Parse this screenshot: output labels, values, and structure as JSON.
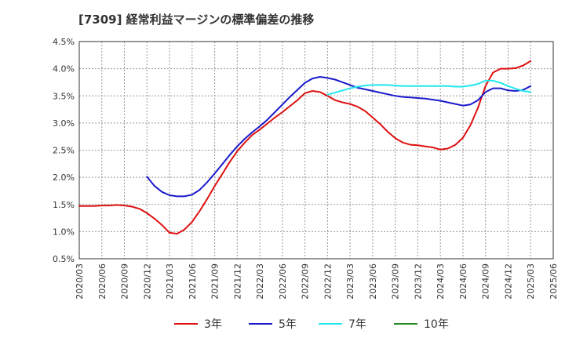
{
  "chart_data": {
    "type": "line",
    "title": "[7309]  経常利益マージンの標準偏差の推移",
    "xlabel": "",
    "ylabel": "",
    "ylim": [
      0.5,
      4.5
    ],
    "y_ticks": [
      0.5,
      1.0,
      1.5,
      2.0,
      2.5,
      3.0,
      3.5,
      4.0,
      4.5
    ],
    "y_tick_labels": [
      "0.5%",
      "1.0%",
      "1.5%",
      "2.0%",
      "2.5%",
      "3.0%",
      "3.5%",
      "4.0%",
      "4.5%"
    ],
    "x_range": [
      "2020/03",
      "2025/06"
    ],
    "x_tick_labels": [
      "2020/03",
      "2020/06",
      "2020/09",
      "2020/12",
      "2021/03",
      "2021/06",
      "2021/09",
      "2021/12",
      "2022/03",
      "2022/06",
      "2022/09",
      "2022/12",
      "2023/03",
      "2023/06",
      "2023/09",
      "2023/12",
      "2024/03",
      "2024/06",
      "2024/09",
      "2024/12",
      "2025/03",
      "2025/06"
    ],
    "grid": true,
    "legend_placement": "bottom",
    "series": [
      {
        "name": "3年",
        "color": "#dd1111",
        "points": [
          [
            "2020/03",
            1.47
          ],
          [
            "2020/04",
            1.47
          ],
          [
            "2020/05",
            1.47
          ],
          [
            "2020/06",
            1.48
          ],
          [
            "2020/07",
            1.48
          ],
          [
            "2020/08",
            1.49
          ],
          [
            "2020/09",
            1.48
          ],
          [
            "2020/10",
            1.46
          ],
          [
            "2020/11",
            1.42
          ],
          [
            "2020/12",
            1.34
          ],
          [
            "2021/01",
            1.24
          ],
          [
            "2021/02",
            1.12
          ],
          [
            "2021/03",
            0.98
          ],
          [
            "2021/04",
            0.96
          ],
          [
            "2021/05",
            1.04
          ],
          [
            "2021/06",
            1.18
          ],
          [
            "2021/07",
            1.38
          ],
          [
            "2021/08",
            1.6
          ],
          [
            "2021/09",
            1.84
          ],
          [
            "2021/10",
            2.06
          ],
          [
            "2021/11",
            2.28
          ],
          [
            "2021/12",
            2.48
          ],
          [
            "2022/01",
            2.64
          ],
          [
            "2022/02",
            2.78
          ],
          [
            "2022/03",
            2.88
          ],
          [
            "2022/04",
            2.99
          ],
          [
            "2022/05",
            3.1
          ],
          [
            "2022/06",
            3.2
          ],
          [
            "2022/07",
            3.31
          ],
          [
            "2022/08",
            3.42
          ],
          [
            "2022/09",
            3.55
          ],
          [
            "2022/10",
            3.59
          ],
          [
            "2022/11",
            3.57
          ],
          [
            "2022/12",
            3.5
          ],
          [
            "2023/01",
            3.42
          ],
          [
            "2023/02",
            3.38
          ],
          [
            "2023/03",
            3.35
          ],
          [
            "2023/04",
            3.3
          ],
          [
            "2023/05",
            3.22
          ],
          [
            "2023/06",
            3.1
          ],
          [
            "2023/07",
            2.98
          ],
          [
            "2023/08",
            2.84
          ],
          [
            "2023/09",
            2.72
          ],
          [
            "2023/10",
            2.64
          ],
          [
            "2023/11",
            2.6
          ],
          [
            "2023/12",
            2.59
          ],
          [
            "2024/01",
            2.57
          ],
          [
            "2024/02",
            2.55
          ],
          [
            "2024/03",
            2.51
          ],
          [
            "2024/04",
            2.53
          ],
          [
            "2024/05",
            2.6
          ],
          [
            "2024/06",
            2.73
          ],
          [
            "2024/07",
            2.96
          ],
          [
            "2024/08",
            3.28
          ],
          [
            "2024/09",
            3.68
          ],
          [
            "2024/10",
            3.93
          ],
          [
            "2024/11",
            4.0
          ],
          [
            "2024/12",
            4.0
          ],
          [
            "2025/01",
            4.01
          ],
          [
            "2025/02",
            4.06
          ],
          [
            "2025/03",
            4.14
          ]
        ]
      },
      {
        "name": "5年",
        "color": "#1a1acc",
        "points": [
          [
            "2020/12",
            2.01
          ],
          [
            "2021/01",
            1.84
          ],
          [
            "2021/02",
            1.73
          ],
          [
            "2021/03",
            1.67
          ],
          [
            "2021/04",
            1.65
          ],
          [
            "2021/05",
            1.65
          ],
          [
            "2021/06",
            1.68
          ],
          [
            "2021/07",
            1.77
          ],
          [
            "2021/08",
            1.91
          ],
          [
            "2021/09",
            2.07
          ],
          [
            "2021/10",
            2.24
          ],
          [
            "2021/11",
            2.41
          ],
          [
            "2021/12",
            2.57
          ],
          [
            "2022/01",
            2.71
          ],
          [
            "2022/02",
            2.83
          ],
          [
            "2022/03",
            2.94
          ],
          [
            "2022/04",
            3.06
          ],
          [
            "2022/05",
            3.2
          ],
          [
            "2022/06",
            3.34
          ],
          [
            "2022/07",
            3.48
          ],
          [
            "2022/08",
            3.61
          ],
          [
            "2022/09",
            3.74
          ],
          [
            "2022/10",
            3.82
          ],
          [
            "2022/11",
            3.85
          ],
          [
            "2022/12",
            3.83
          ],
          [
            "2023/01",
            3.8
          ],
          [
            "2023/02",
            3.75
          ],
          [
            "2023/03",
            3.7
          ],
          [
            "2023/04",
            3.65
          ],
          [
            "2023/05",
            3.62
          ],
          [
            "2023/06",
            3.59
          ],
          [
            "2023/07",
            3.56
          ],
          [
            "2023/08",
            3.53
          ],
          [
            "2023/09",
            3.5
          ],
          [
            "2023/10",
            3.48
          ],
          [
            "2023/11",
            3.47
          ],
          [
            "2023/12",
            3.46
          ],
          [
            "2024/01",
            3.45
          ],
          [
            "2024/02",
            3.43
          ],
          [
            "2024/03",
            3.41
          ],
          [
            "2024/04",
            3.38
          ],
          [
            "2024/05",
            3.35
          ],
          [
            "2024/06",
            3.32
          ],
          [
            "2024/07",
            3.34
          ],
          [
            "2024/08",
            3.42
          ],
          [
            "2024/09",
            3.57
          ],
          [
            "2024/10",
            3.64
          ],
          [
            "2024/11",
            3.64
          ],
          [
            "2024/12",
            3.6
          ],
          [
            "2025/01",
            3.59
          ],
          [
            "2025/02",
            3.61
          ],
          [
            "2025/03",
            3.68
          ]
        ]
      },
      {
        "name": "7年",
        "color": "#22e6ee",
        "points": [
          [
            "2022/12",
            3.52
          ],
          [
            "2023/01",
            3.56
          ],
          [
            "2023/02",
            3.6
          ],
          [
            "2023/03",
            3.64
          ],
          [
            "2023/04",
            3.67
          ],
          [
            "2023/05",
            3.69
          ],
          [
            "2023/06",
            3.7
          ],
          [
            "2023/07",
            3.7
          ],
          [
            "2023/08",
            3.7
          ],
          [
            "2023/09",
            3.69
          ],
          [
            "2023/10",
            3.68
          ],
          [
            "2023/11",
            3.68
          ],
          [
            "2023/12",
            3.68
          ],
          [
            "2024/01",
            3.68
          ],
          [
            "2024/02",
            3.68
          ],
          [
            "2024/03",
            3.68
          ],
          [
            "2024/04",
            3.68
          ],
          [
            "2024/05",
            3.67
          ],
          [
            "2024/06",
            3.67
          ],
          [
            "2024/07",
            3.69
          ],
          [
            "2024/08",
            3.72
          ],
          [
            "2024/09",
            3.78
          ],
          [
            "2024/10",
            3.78
          ],
          [
            "2024/11",
            3.74
          ],
          [
            "2024/12",
            3.68
          ],
          [
            "2025/01",
            3.63
          ],
          [
            "2025/02",
            3.59
          ],
          [
            "2025/03",
            3.57
          ]
        ]
      },
      {
        "name": "10年",
        "color": "#228822",
        "points": []
      }
    ]
  }
}
